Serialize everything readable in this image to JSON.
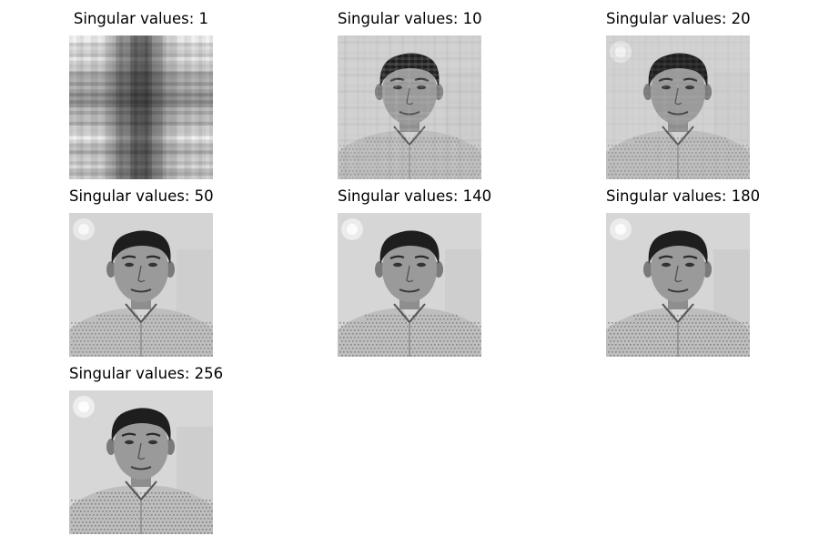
{
  "figure": {
    "panels": [
      {
        "title": "Singular values: 1",
        "k": 1
      },
      {
        "title": "Singular values: 10",
        "k": 10
      },
      {
        "title": "Singular values: 20",
        "k": 20
      },
      {
        "title": "Singular values: 50",
        "k": 50
      },
      {
        "title": "Singular values: 140",
        "k": 140
      },
      {
        "title": "Singular values: 180",
        "k": 180
      },
      {
        "title": "Singular values: 256",
        "k": 256
      }
    ]
  }
}
